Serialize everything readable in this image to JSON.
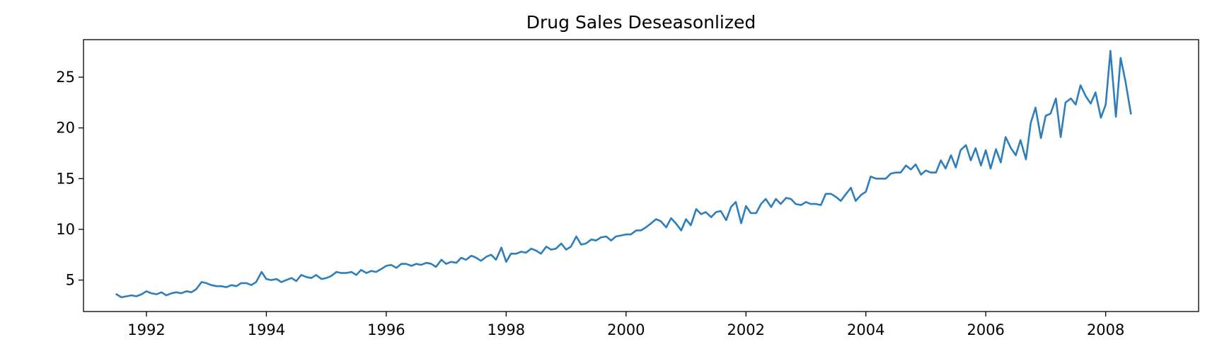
{
  "chart_data": {
    "type": "line",
    "title": "Drug Sales Deseasonlized",
    "xlabel": "",
    "ylabel": "",
    "xlim": [
      1990.95,
      2009.55
    ],
    "ylim": [
      1.9,
      28.7
    ],
    "x_ticks": [
      1992,
      1994,
      1996,
      1998,
      2000,
      2002,
      2004,
      2006,
      2008
    ],
    "x_tick_labels": [
      "1992",
      "1994",
      "1996",
      "1998",
      "2000",
      "2002",
      "2004",
      "2006",
      "2008"
    ],
    "y_ticks": [
      5,
      10,
      15,
      20,
      25
    ],
    "y_tick_labels": [
      "5",
      "10",
      "15",
      "20",
      "25"
    ],
    "grid": false,
    "series": [
      {
        "color": "#2f7ebc",
        "x": [
          1991.5,
          1991.58,
          1991.67,
          1991.75,
          1991.83,
          1991.92,
          1992.0,
          1992.08,
          1992.17,
          1992.25,
          1992.33,
          1992.42,
          1992.5,
          1992.58,
          1992.67,
          1992.75,
          1992.83,
          1992.92,
          1993.0,
          1993.08,
          1993.17,
          1993.25,
          1993.33,
          1993.42,
          1993.5,
          1993.58,
          1993.67,
          1993.75,
          1993.83,
          1993.92,
          1994.0,
          1994.08,
          1994.17,
          1994.25,
          1994.33,
          1994.42,
          1994.5,
          1994.58,
          1994.67,
          1994.75,
          1994.83,
          1994.92,
          1995.0,
          1995.08,
          1995.17,
          1995.25,
          1995.33,
          1995.42,
          1995.5,
          1995.58,
          1995.67,
          1995.75,
          1995.83,
          1995.92,
          1996.0,
          1996.08,
          1996.17,
          1996.25,
          1996.33,
          1996.42,
          1996.5,
          1996.58,
          1996.67,
          1996.75,
          1996.83,
          1996.92,
          1997.0,
          1997.08,
          1997.17,
          1997.25,
          1997.33,
          1997.42,
          1997.5,
          1997.58,
          1997.67,
          1997.75,
          1997.83,
          1997.92,
          1998.0,
          1998.08,
          1998.17,
          1998.25,
          1998.33,
          1998.42,
          1998.5,
          1998.58,
          1998.67,
          1998.75,
          1998.83,
          1998.92,
          1999.0,
          1999.08,
          1999.17,
          1999.25,
          1999.33,
          1999.42,
          1999.5,
          1999.58,
          1999.67,
          1999.75,
          1999.83,
          1999.92,
          2000.0,
          2000.08,
          2000.17,
          2000.25,
          2000.33,
          2000.42,
          2000.5,
          2000.58,
          2000.67,
          2000.75,
          2000.83,
          2000.92,
          2001.0,
          2001.08,
          2001.17,
          2001.25,
          2001.33,
          2001.42,
          2001.5,
          2001.58,
          2001.67,
          2001.75,
          2001.83,
          2001.92,
          2002.0,
          2002.08,
          2002.17,
          2002.25,
          2002.33,
          2002.42,
          2002.5,
          2002.58,
          2002.67,
          2002.75,
          2002.83,
          2002.92,
          2003.0,
          2003.08,
          2003.17,
          2003.25,
          2003.33,
          2003.42,
          2003.5,
          2003.58,
          2003.67,
          2003.75,
          2003.83,
          2003.92,
          2004.0,
          2004.08,
          2004.17,
          2004.25,
          2004.33,
          2004.42,
          2004.5,
          2004.58,
          2004.67,
          2004.75,
          2004.83,
          2004.92,
          2005.0,
          2005.08,
          2005.17,
          2005.25,
          2005.33,
          2005.42,
          2005.5,
          2005.58,
          2005.67,
          2005.75,
          2005.83,
          2005.92,
          2006.0,
          2006.08,
          2006.17,
          2006.25,
          2006.33,
          2006.42,
          2006.5,
          2006.58,
          2006.67,
          2006.75,
          2006.83,
          2006.92,
          2007.0,
          2007.08,
          2007.17,
          2007.25,
          2007.33,
          2007.42,
          2007.5,
          2007.58,
          2007.67,
          2007.75,
          2007.83,
          2007.92,
          2008.0,
          2008.08,
          2008.17,
          2008.25,
          2008.33,
          2008.42
        ],
        "y": [
          3.6,
          3.3,
          3.4,
          3.5,
          3.4,
          3.6,
          3.9,
          3.7,
          3.6,
          3.8,
          3.5,
          3.7,
          3.8,
          3.7,
          3.9,
          3.8,
          4.1,
          4.8,
          4.7,
          4.5,
          4.4,
          4.4,
          4.3,
          4.5,
          4.4,
          4.7,
          4.7,
          4.5,
          4.8,
          5.8,
          5.1,
          5.0,
          5.1,
          4.8,
          5.0,
          5.2,
          4.9,
          5.5,
          5.3,
          5.2,
          5.5,
          5.1,
          5.2,
          5.4,
          5.8,
          5.7,
          5.7,
          5.8,
          5.5,
          6.0,
          5.7,
          5.9,
          5.8,
          6.1,
          6.4,
          6.5,
          6.2,
          6.6,
          6.6,
          6.4,
          6.6,
          6.5,
          6.7,
          6.6,
          6.3,
          7.0,
          6.6,
          6.8,
          6.7,
          7.2,
          7.0,
          7.4,
          7.2,
          6.9,
          7.3,
          7.5,
          7.0,
          8.2,
          6.8,
          7.6,
          7.6,
          7.8,
          7.7,
          8.1,
          7.9,
          7.6,
          8.3,
          8.0,
          8.1,
          8.6,
          8.0,
          8.3,
          9.3,
          8.5,
          8.6,
          9.0,
          8.9,
          9.2,
          9.3,
          8.9,
          9.3,
          9.4,
          9.5,
          9.5,
          9.9,
          9.9,
          10.2,
          10.6,
          11.0,
          10.8,
          10.2,
          11.1,
          10.6,
          9.9,
          11.0,
          10.4,
          12.0,
          11.5,
          11.7,
          11.2,
          11.7,
          11.8,
          10.9,
          12.2,
          12.7,
          10.6,
          12.3,
          11.6,
          11.6,
          12.5,
          13.0,
          12.2,
          13.0,
          12.5,
          13.1,
          13.0,
          12.5,
          12.4,
          12.7,
          12.5,
          12.5,
          12.4,
          13.5,
          13.5,
          13.2,
          12.8,
          13.5,
          14.1,
          12.8,
          13.4,
          13.7,
          15.2,
          15.0,
          15.0,
          15.0,
          15.5,
          15.6,
          15.6,
          16.3,
          15.9,
          16.4,
          15.4,
          15.8,
          15.6,
          15.6,
          16.8,
          16.0,
          17.3,
          16.1,
          17.8,
          18.3,
          16.8,
          18.0,
          16.3,
          17.8,
          16.0,
          17.9,
          16.6,
          19.1,
          18.0,
          17.3,
          18.8,
          16.9,
          20.5,
          22.0,
          19.0,
          21.2,
          21.4,
          22.9,
          19.1,
          22.5,
          22.9,
          22.3,
          24.2,
          23.1,
          22.4,
          23.5,
          21.0,
          22.3,
          27.6,
          21.1,
          26.9,
          24.6,
          21.4
        ]
      }
    ]
  }
}
